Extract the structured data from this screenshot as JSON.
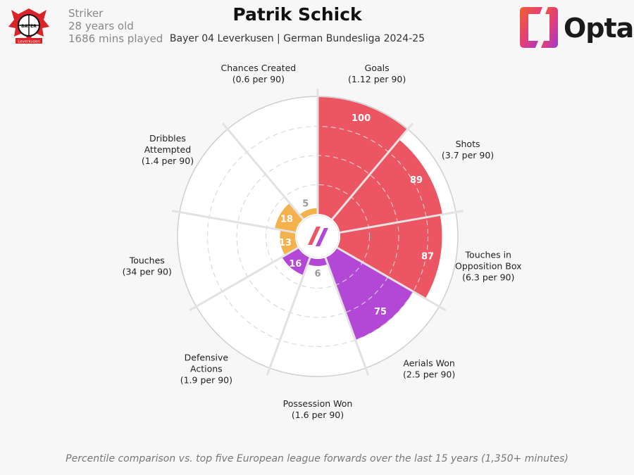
{
  "header": {
    "player_name": "Patrik Schick",
    "subtitle": "Bayer 04 Leverkusen | German Bundesliga 2024-25",
    "position": "Striker",
    "age": "28 years old",
    "minutes": "1686 mins played",
    "club_badge_text": "BAYER 04",
    "club_badge_bottom": "Leverkusen",
    "club_badge_year": "1904",
    "brand": "Opta"
  },
  "footer": "Percentile comparison vs. top five European league forwards over the last 15 years (1,350+ minutes)",
  "colors": {
    "attacking": "#ec5562",
    "aerial": "#b348d6",
    "possession": "#f5b14c",
    "grid": "#dddddd",
    "text": "#222222"
  },
  "chart_data": {
    "type": "polar-bar",
    "rmax": 100,
    "gridlines": [
      25,
      50,
      75
    ],
    "metrics": [
      {
        "name": "Goals",
        "line1": "Goals",
        "line2": "",
        "per90": "(1.12 per 90)",
        "percentile": 100,
        "group": "attacking"
      },
      {
        "name": "Shots",
        "line1": "Shots",
        "line2": "",
        "per90": "(3.7 per 90)",
        "percentile": 89,
        "group": "attacking"
      },
      {
        "name": "Touches in Opposition Box",
        "line1": "Touches in",
        "line2": "Opposition Box",
        "per90": "(6.3 per 90)",
        "percentile": 87,
        "group": "attacking"
      },
      {
        "name": "Aerials Won",
        "line1": "Aerials Won",
        "line2": "",
        "per90": "(2.5 per 90)",
        "percentile": 75,
        "group": "aerial"
      },
      {
        "name": "Possession Won",
        "line1": "Possession Won",
        "line2": "",
        "per90": "(1.6 per 90)",
        "percentile": 6,
        "group": "aerial"
      },
      {
        "name": "Defensive Actions",
        "line1": "Defensive",
        "line2": "Actions",
        "per90": "(1.9 per 90)",
        "percentile": 16,
        "group": "aerial"
      },
      {
        "name": "Touches",
        "line1": "Touches",
        "line2": "",
        "per90": "(34 per 90)",
        "percentile": 13,
        "group": "possession"
      },
      {
        "name": "Dribbles Attempted",
        "line1": "Dribbles",
        "line2": "Attempted",
        "per90": "(1.4 per 90)",
        "percentile": 18,
        "group": "possession"
      },
      {
        "name": "Chances Created",
        "line1": "Chances Created",
        "line2": "",
        "per90": "(0.6 per 90)",
        "percentile": 5,
        "group": "possession"
      }
    ]
  }
}
